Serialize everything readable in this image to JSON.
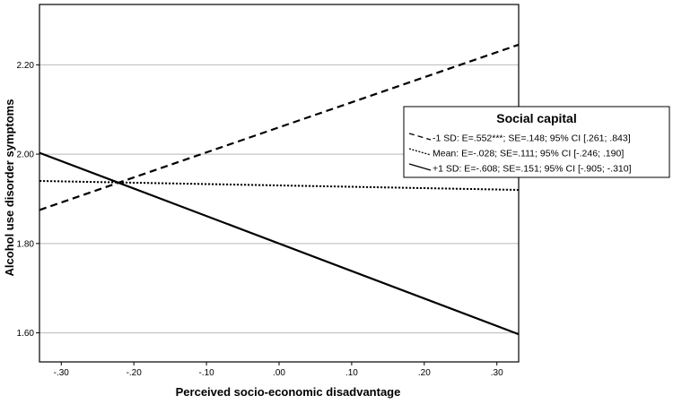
{
  "chart_data": {
    "type": "line",
    "title": "",
    "xlabel": "Perceived socio-economic disadvantage",
    "ylabel": "Alcohol use disorder symptoms",
    "xlim": [
      -0.33,
      0.33
    ],
    "ylim": [
      1.535,
      2.335
    ],
    "x_ticks": [
      -0.3,
      -0.2,
      -0.1,
      0.0,
      0.1,
      0.2,
      0.3
    ],
    "x_tick_labels": [
      "-.30",
      "-.20",
      "-.10",
      ".00",
      ".10",
      ".20",
      ".30"
    ],
    "y_ticks": [
      1.6,
      1.8,
      2.0,
      2.2
    ],
    "y_tick_labels": [
      "1.60",
      "1.80",
      "2.00",
      "2.20"
    ],
    "grid": "horizontal",
    "legend": {
      "title": "Social capital",
      "placement": "right",
      "entries": [
        {
          "label": "-1 SD: E=.552***; SE=.148; 95% CI [.261; .843]",
          "style": "dashed"
        },
        {
          "label": "Mean: E=-.028; SE=.111; 95% CI [-.246; .190]",
          "style": "dotted"
        },
        {
          "label": "+1 SD: E=-.608; SE=.151; 95% CI [-.905; -.310]",
          "style": "solid"
        }
      ]
    },
    "series": [
      {
        "style": "dashed",
        "x": [
          -0.33,
          0.33
        ],
        "y": [
          1.875,
          2.245
        ]
      },
      {
        "style": "dotted",
        "x": [
          -0.33,
          0.33
        ],
        "y": [
          1.94,
          1.92
        ]
      },
      {
        "style": "solid",
        "x": [
          -0.33,
          0.33
        ],
        "y": [
          2.003,
          1.597
        ]
      }
    ],
    "colors": {
      "line": "#000000",
      "grid": "#b8b8b8",
      "background": "#ffffff"
    }
  }
}
